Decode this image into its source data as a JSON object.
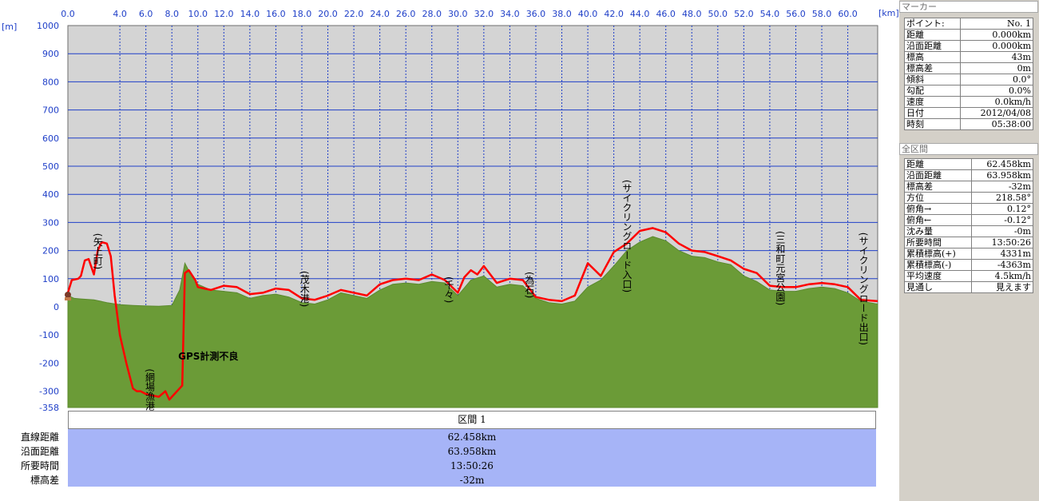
{
  "units": {
    "x": "[km]",
    "y": "[m]"
  },
  "chart_data": {
    "type": "area",
    "x_ticks": [
      "0.0",
      "4.0",
      "6.0",
      "8.0",
      "10.0",
      "12.0",
      "14.0",
      "16.0",
      "18.0",
      "20.0",
      "22.0",
      "24.0",
      "26.0",
      "28.0",
      "30.0",
      "32.0",
      "34.0",
      "36.0",
      "38.0",
      "40.0",
      "42.0",
      "44.0",
      "46.0",
      "48.0",
      "50.0",
      "52.0",
      "54.0",
      "56.0",
      "58.0",
      "60.0"
    ],
    "y_ticks": [
      "1000",
      "900",
      "800",
      "700",
      "600",
      "500",
      "400",
      "300",
      "200",
      "100",
      "0",
      "-100",
      "-200",
      "-300",
      "-358"
    ],
    "xlim": [
      0,
      62.3
    ],
    "ylim": [
      -358,
      1000
    ],
    "grid": true,
    "series": [
      {
        "color": "#6b9b37",
        "points": [
          [
            0,
            40
          ],
          [
            0.5,
            30
          ],
          [
            1,
            28
          ],
          [
            2,
            25
          ],
          [
            3,
            15
          ],
          [
            4,
            8
          ],
          [
            5,
            5
          ],
          [
            6,
            3
          ],
          [
            7,
            2
          ],
          [
            8,
            5
          ],
          [
            8.6,
            60
          ],
          [
            9,
            155
          ],
          [
            9.4,
            120
          ],
          [
            10,
            80
          ],
          [
            11,
            60
          ],
          [
            12,
            55
          ],
          [
            13,
            50
          ],
          [
            14,
            30
          ],
          [
            15,
            40
          ],
          [
            16,
            45
          ],
          [
            17,
            35
          ],
          [
            18,
            15
          ],
          [
            19,
            10
          ],
          [
            20,
            25
          ],
          [
            21,
            50
          ],
          [
            22,
            40
          ],
          [
            23,
            30
          ],
          [
            24,
            60
          ],
          [
            25,
            80
          ],
          [
            26,
            85
          ],
          [
            27,
            80
          ],
          [
            28,
            90
          ],
          [
            29,
            85
          ],
          [
            30,
            40
          ],
          [
            31,
            95
          ],
          [
            32,
            110
          ],
          [
            33,
            70
          ],
          [
            34,
            80
          ],
          [
            35,
            75
          ],
          [
            36,
            30
          ],
          [
            37,
            15
          ],
          [
            38,
            10
          ],
          [
            39,
            20
          ],
          [
            40,
            70
          ],
          [
            41,
            95
          ],
          [
            42,
            145
          ],
          [
            43,
            200
          ],
          [
            44,
            230
          ],
          [
            45,
            250
          ],
          [
            46,
            235
          ],
          [
            47,
            200
          ],
          [
            48,
            180
          ],
          [
            49,
            175
          ],
          [
            50,
            160
          ],
          [
            51,
            150
          ],
          [
            52,
            110
          ],
          [
            53,
            90
          ],
          [
            54,
            60
          ],
          [
            55,
            55
          ],
          [
            56,
            55
          ],
          [
            57,
            65
          ],
          [
            58,
            70
          ],
          [
            59,
            65
          ],
          [
            60,
            50
          ],
          [
            61,
            20
          ],
          [
            62.3,
            10
          ]
        ]
      },
      {
        "color": "#ff0000",
        "points": [
          [
            0,
            50
          ],
          [
            0.3,
            95
          ],
          [
            0.8,
            100
          ],
          [
            1,
            110
          ],
          [
            1.3,
            165
          ],
          [
            1.6,
            170
          ],
          [
            2,
            115
          ],
          [
            2.3,
            200
          ],
          [
            2.6,
            230
          ],
          [
            3,
            225
          ],
          [
            3.3,
            180
          ],
          [
            3.6,
            40
          ],
          [
            4,
            -100
          ],
          [
            4.5,
            -200
          ],
          [
            5,
            -290
          ],
          [
            5.3,
            -300
          ],
          [
            5.6,
            -300
          ],
          [
            6,
            -310
          ],
          [
            6.5,
            -315
          ],
          [
            7,
            -320
          ],
          [
            7.5,
            -300
          ],
          [
            7.8,
            -330
          ],
          [
            8,
            -320
          ],
          [
            8.5,
            -295
          ],
          [
            8.8,
            -280
          ],
          [
            9,
            120
          ],
          [
            9.3,
            130
          ],
          [
            9.8,
            95
          ],
          [
            10,
            70
          ],
          [
            11,
            60
          ],
          [
            12,
            75
          ],
          [
            13,
            70
          ],
          [
            14,
            45
          ],
          [
            15,
            50
          ],
          [
            16,
            65
          ],
          [
            17,
            60
          ],
          [
            18,
            30
          ],
          [
            19,
            25
          ],
          [
            20,
            40
          ],
          [
            21,
            60
          ],
          [
            22,
            50
          ],
          [
            23,
            40
          ],
          [
            24,
            80
          ],
          [
            25,
            95
          ],
          [
            26,
            100
          ],
          [
            27,
            95
          ],
          [
            28,
            115
          ],
          [
            29,
            95
          ],
          [
            30,
            50
          ],
          [
            30.5,
            105
          ],
          [
            31,
            130
          ],
          [
            31.5,
            115
          ],
          [
            32,
            145
          ],
          [
            33,
            85
          ],
          [
            34,
            100
          ],
          [
            35,
            95
          ],
          [
            36,
            35
          ],
          [
            37,
            25
          ],
          [
            38,
            20
          ],
          [
            39,
            40
          ],
          [
            40,
            155
          ],
          [
            41,
            110
          ],
          [
            42,
            195
          ],
          [
            43,
            225
          ],
          [
            44,
            270
          ],
          [
            45,
            280
          ],
          [
            46,
            265
          ],
          [
            47,
            225
          ],
          [
            48,
            200
          ],
          [
            49,
            195
          ],
          [
            50,
            180
          ],
          [
            51,
            165
          ],
          [
            52,
            135
          ],
          [
            53,
            120
          ],
          [
            54,
            75
          ],
          [
            55,
            70
          ],
          [
            56,
            70
          ],
          [
            57,
            80
          ],
          [
            58,
            85
          ],
          [
            59,
            80
          ],
          [
            60,
            70
          ],
          [
            61,
            25
          ],
          [
            62.3,
            20
          ]
        ]
      }
    ],
    "annotations": [
      {
        "text": "(矢上町)",
        "x": 2.3,
        "y": 262
      },
      {
        "text": "(網場漁港)",
        "x": 6.3,
        "y": -220
      },
      {
        "text": "GPS計測不良",
        "x": 10.8,
        "y": -188
      },
      {
        "text": "(茂木港)",
        "x": 18.2,
        "y": 128
      },
      {
        "text": "(千々)",
        "x": 29.3,
        "y": 108
      },
      {
        "text": "(為石)",
        "x": 35.5,
        "y": 125
      },
      {
        "text": "(サイクリングロード入口)",
        "x": 43.0,
        "y": 452
      },
      {
        "text": "(三和町元宮公園)",
        "x": 54.8,
        "y": 270
      },
      {
        "text": "(サイクリングロード出口)",
        "x": 61.2,
        "y": 265
      }
    ]
  },
  "marker": {
    "header": "マーカー",
    "rows": [
      {
        "label": "ポイント:",
        "value": "No. 1"
      },
      {
        "label": "距離",
        "value": "0.000km"
      },
      {
        "label": "沿面距離",
        "value": "0.000km"
      },
      {
        "label": "標高",
        "value": "43m"
      },
      {
        "label": "標高差",
        "value": "0m"
      },
      {
        "label": "傾斜",
        "value": "0.0°"
      },
      {
        "label": "勾配",
        "value": "0.0%"
      },
      {
        "label": "速度",
        "value": "0.0km/h"
      },
      {
        "label": "日付",
        "value": "2012/04/08"
      },
      {
        "label": "時刻",
        "value": "05:38:00"
      }
    ]
  },
  "section": {
    "header": "全区間",
    "rows": [
      {
        "label": "距離",
        "value": "62.458km"
      },
      {
        "label": "沿面距離",
        "value": "63.958km"
      },
      {
        "label": "標高差",
        "value": "-32m"
      },
      {
        "label": "方位",
        "value": "218.58°"
      },
      {
        "label": "俯角→",
        "value": "0.12°"
      },
      {
        "label": "俯角←",
        "value": "-0.12°"
      },
      {
        "label": "沈み量",
        "value": "-0m"
      },
      {
        "label": "所要時間",
        "value": "13:50:26"
      },
      {
        "label": "累積標高(+)",
        "value": "4331m"
      },
      {
        "label": "累積標高(-)",
        "value": "-4363m"
      },
      {
        "label": "平均速度",
        "value": "4.5km/h"
      },
      {
        "label": "見通し",
        "value": "見えます"
      }
    ]
  },
  "summary": {
    "header": "区間 1",
    "rows": [
      {
        "label": "直線距離",
        "value": "62.458km"
      },
      {
        "label": "沿面距離",
        "value": "63.958km"
      },
      {
        "label": "所要時間",
        "value": "13:50:26"
      },
      {
        "label": "標高差",
        "value": "-32m"
      }
    ]
  }
}
